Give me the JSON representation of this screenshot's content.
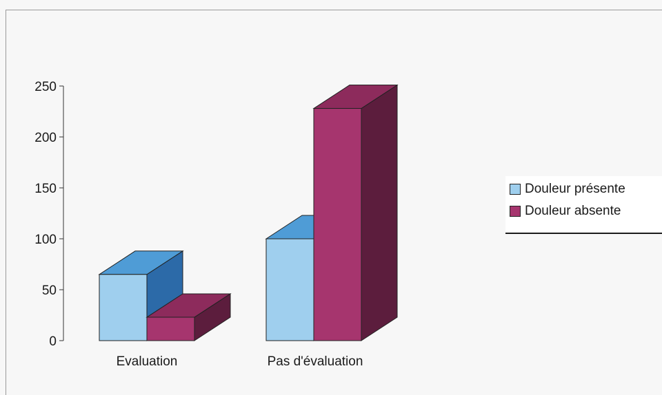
{
  "chart_data": {
    "type": "bar",
    "categories": [
      "Evaluation",
      "Pas d'évaluation"
    ],
    "series": [
      {
        "name": "Douleur présente",
        "values": [
          65,
          100
        ]
      },
      {
        "name": "Douleur absente",
        "values": [
          23,
          228
        ]
      }
    ],
    "ylim": [
      0,
      250
    ],
    "yticks": [
      0,
      50,
      100,
      150,
      200,
      250
    ],
    "legend_position": "right",
    "three_d": true,
    "colors": {
      "present": {
        "front": "#9fcfee",
        "top": "#4f9cd6",
        "side": "#2c6aa8"
      },
      "absent": {
        "front": "#a6356e",
        "top": "#8d2b5c",
        "side": "#5c1d3d"
      }
    }
  }
}
